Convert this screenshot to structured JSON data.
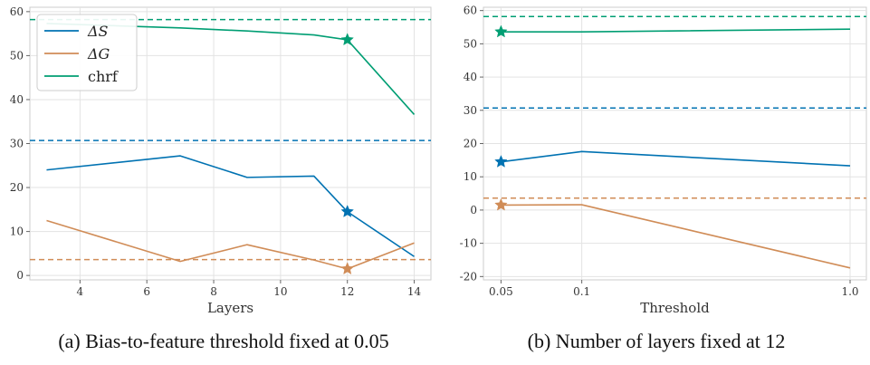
{
  "chart_data": [
    {
      "type": "line",
      "panel": "a",
      "caption": "(a) Bias-to-feature threshold fixed at 0.05",
      "xlabel": "Layers",
      "ylabel": "",
      "x_scale": "linear",
      "xlim": [
        2.5,
        14.5
      ],
      "ylim": [
        -1,
        61
      ],
      "xticks": [
        4,
        6,
        8,
        10,
        12,
        14
      ],
      "yticks": [
        0,
        10,
        20,
        30,
        40,
        50,
        60
      ],
      "grid": true,
      "legend": {
        "position": "top-left",
        "entries": [
          "ΔS",
          "ΔG",
          "chrf"
        ]
      },
      "series": [
        {
          "name": "ΔS",
          "color": "#0072b2",
          "x": [
            3,
            7,
            9,
            11,
            12,
            14
          ],
          "values": [
            24,
            27.2,
            22.3,
            22.6,
            14.5,
            4.3
          ]
        },
        {
          "name": "ΔG",
          "color": "#d08c57",
          "x": [
            3,
            7,
            9,
            11,
            12,
            14
          ],
          "values": [
            12.5,
            3.2,
            7.0,
            3.5,
            1.5,
            7.4
          ]
        },
        {
          "name": "chrf",
          "color": "#009e73",
          "x": [
            3,
            7,
            9,
            11,
            12,
            14
          ],
          "values": [
            57.3,
            56.3,
            55.6,
            54.7,
            53.6,
            36.6
          ]
        }
      ],
      "baselines": [
        {
          "series": "ΔS",
          "color": "#0072b2",
          "value": 30.7
        },
        {
          "series": "ΔG",
          "color": "#d08c57",
          "value": 3.6
        },
        {
          "series": "chrf",
          "color": "#009e73",
          "value": 58.2
        }
      ],
      "stars": [
        {
          "series": "ΔS",
          "color": "#0072b2",
          "x": 12,
          "y": 14.5
        },
        {
          "series": "ΔG",
          "color": "#d08c57",
          "x": 12,
          "y": 1.5
        },
        {
          "series": "chrf",
          "color": "#009e73",
          "x": 12,
          "y": 53.6
        }
      ]
    },
    {
      "type": "line",
      "panel": "b",
      "caption": "(b) Number of layers fixed at 12",
      "xlabel": "Threshold",
      "ylabel": "",
      "x_scale": "log",
      "xlim": [
        0.043,
        1.15
      ],
      "ylim": [
        -21,
        61
      ],
      "xticks": [
        0.05,
        0.1,
        1.0
      ],
      "xticklabels": [
        "0.05",
        "0.1",
        "1.0"
      ],
      "yticks": [
        -20,
        -10,
        0,
        10,
        20,
        30,
        40,
        50,
        60
      ],
      "grid": true,
      "series": [
        {
          "name": "ΔS",
          "color": "#0072b2",
          "x": [
            0.05,
            0.1,
            1.0
          ],
          "values": [
            14.5,
            17.6,
            13.3
          ]
        },
        {
          "name": "ΔG",
          "color": "#d08c57",
          "x": [
            0.05,
            0.1,
            1.0
          ],
          "values": [
            1.5,
            1.6,
            -17.4
          ]
        },
        {
          "name": "chrf",
          "color": "#009e73",
          "x": [
            0.05,
            0.1,
            1.0
          ],
          "values": [
            53.6,
            53.6,
            54.4
          ]
        }
      ],
      "baselines": [
        {
          "series": "ΔS",
          "color": "#0072b2",
          "value": 30.7
        },
        {
          "series": "ΔG",
          "color": "#d08c57",
          "value": 3.6
        },
        {
          "series": "chrf",
          "color": "#009e73",
          "value": 58.2
        }
      ],
      "stars": [
        {
          "series": "ΔS",
          "color": "#0072b2",
          "x": 0.05,
          "y": 14.5
        },
        {
          "series": "ΔG",
          "color": "#d08c57",
          "x": 0.05,
          "y": 1.5
        },
        {
          "series": "chrf",
          "color": "#009e73",
          "x": 0.05,
          "y": 53.6
        }
      ]
    }
  ]
}
